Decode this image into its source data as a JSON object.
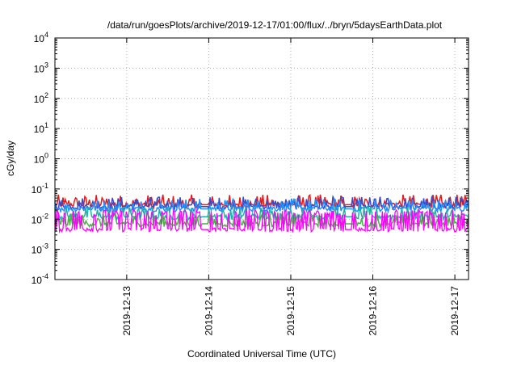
{
  "chart_data": {
    "type": "line",
    "title": "/data/run/goesPlots/archive/2019-12-17/01:00/flux/../bryn/5daysEarthData.plot",
    "xlabel": "Coordinated Universal Time (UTC)",
    "ylabel": "cGy/day",
    "yscale": "log",
    "ylim": [
      0.0001,
      10000
    ],
    "xlim": [
      "2019-12-12 03:00",
      "2019-12-17 04:00"
    ],
    "grid": true,
    "y_ticks": [
      {
        "base": "10",
        "exp": "-4",
        "value": 0.0001
      },
      {
        "base": "10",
        "exp": "-3",
        "value": 0.001
      },
      {
        "base": "10",
        "exp": "-2",
        "value": 0.01
      },
      {
        "base": "10",
        "exp": "-1",
        "value": 0.1
      },
      {
        "base": "10",
        "exp": "0",
        "value": 1
      },
      {
        "base": "10",
        "exp": "1",
        "value": 10
      },
      {
        "base": "10",
        "exp": "2",
        "value": 100
      },
      {
        "base": "10",
        "exp": "3",
        "value": 1000
      },
      {
        "base": "10",
        "exp": "4",
        "value": 10000
      }
    ],
    "x_ticks": [
      {
        "label": "2019-12-13",
        "value": "2019-12-13 00:00"
      },
      {
        "label": "2019-12-14",
        "value": "2019-12-14 00:00"
      },
      {
        "label": "2019-12-15",
        "value": "2019-12-15 00:00"
      },
      {
        "label": "2019-12-16",
        "value": "2019-12-16 00:00"
      },
      {
        "label": "2019-12-17",
        "value": "2019-12-17 00:00"
      }
    ],
    "series": [
      {
        "color": "#e41a1c",
        "base_y": 0.03,
        "spike_max": 0.065
      },
      {
        "color": "#3b4bc8",
        "base_y": 0.026,
        "spike_max": 0.055
      },
      {
        "color": "#1e90ff",
        "base_y": 0.022,
        "spike_max": 0.05
      },
      {
        "color": "#20b2aa",
        "base_y": 0.012,
        "spike_max": 0.03
      },
      {
        "color": "#4daf4a",
        "base_y": 0.007,
        "spike_max": 0.02
      },
      {
        "color": "#ff00ff",
        "base_y": 0.0045,
        "spike_max": 0.02
      }
    ],
    "gaps": [
      {
        "start": "2019-12-13 22:00",
        "end": "2019-12-13 23:59"
      },
      {
        "start": "2019-12-15 16:00",
        "end": "2019-12-15 18:00"
      }
    ]
  }
}
